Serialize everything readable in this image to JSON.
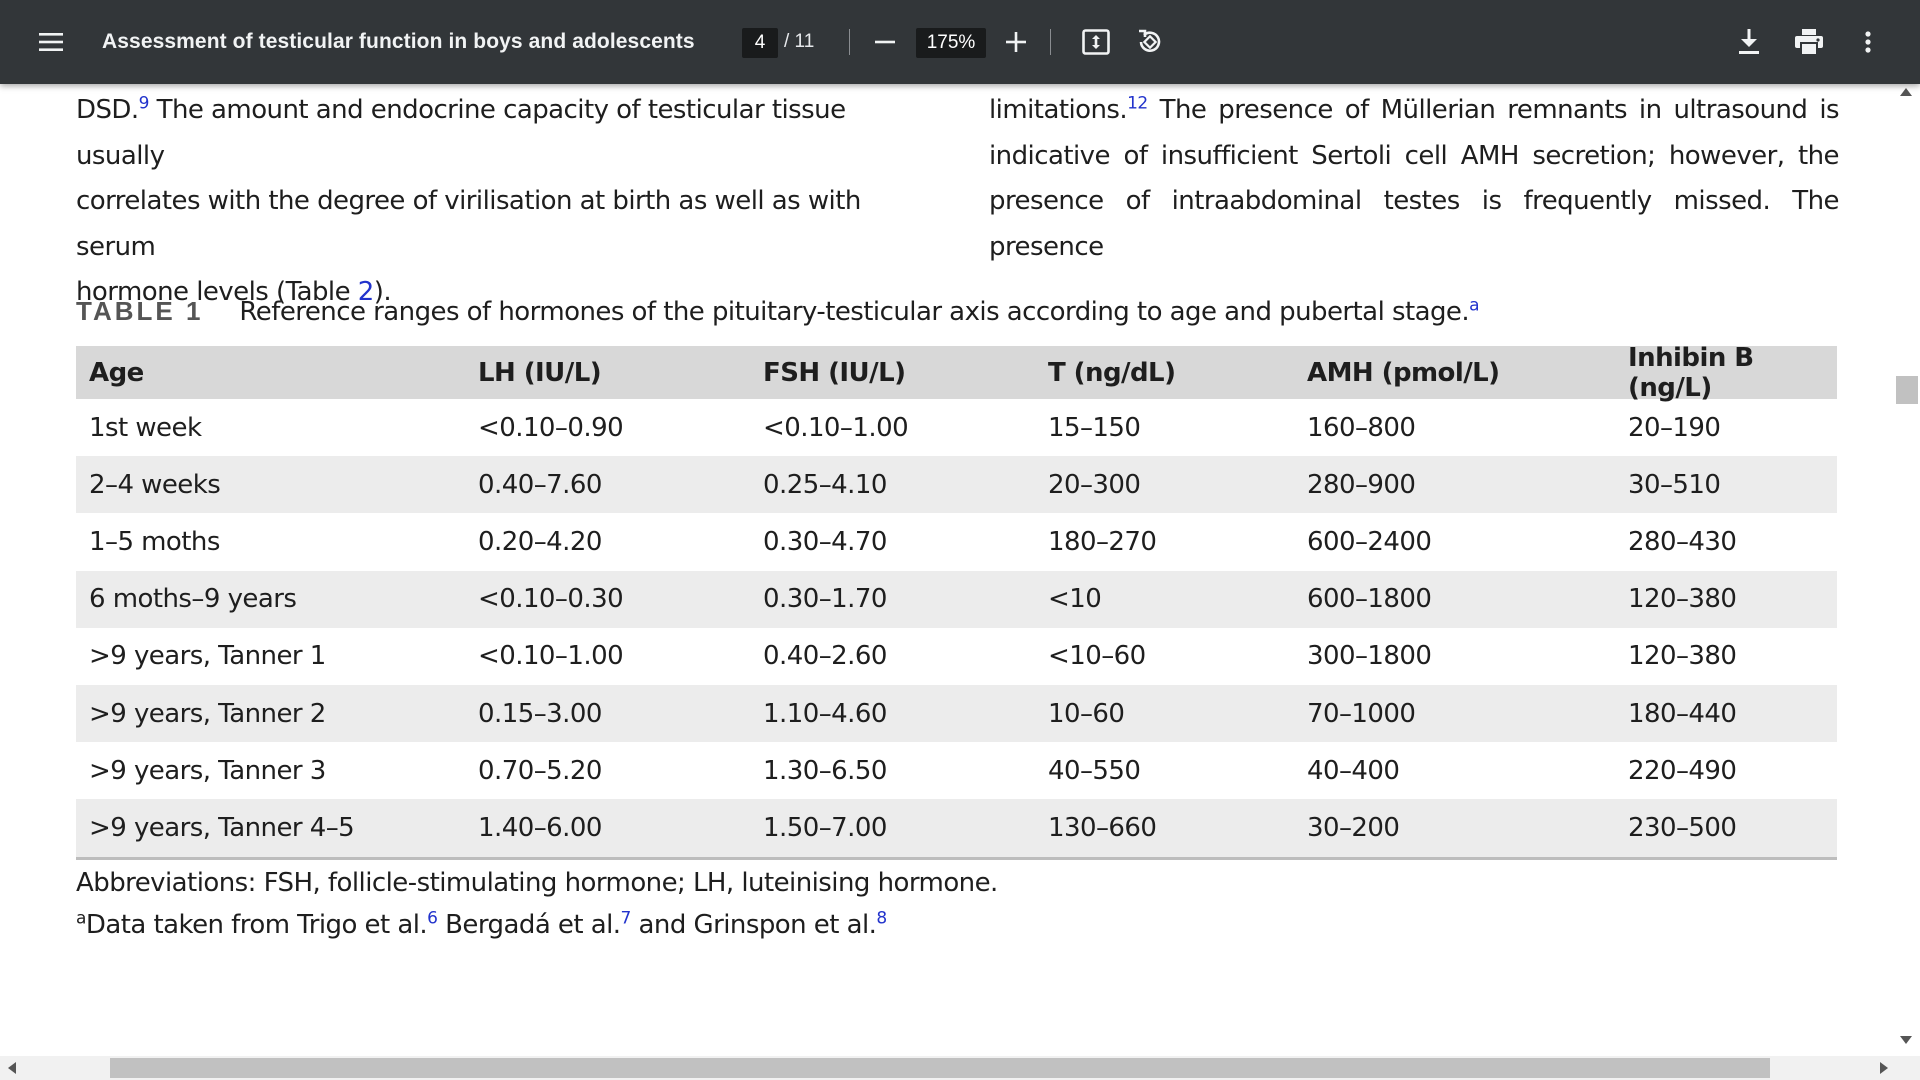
{
  "toolbar": {
    "menu_icon": "hamburger-menu-icon",
    "title": "Assessment of testicular function in boys and adolescents",
    "current_page": "4",
    "total_pages": "/ 11",
    "zoom": "175%",
    "icons": [
      "zoom-out-icon",
      "zoom-in-icon",
      "fit-page-icon",
      "rotate-icon",
      "download-icon",
      "print-icon",
      "more-options-icon"
    ]
  },
  "document": {
    "left_column": {
      "line1_pre": "DSD.",
      "line1_ref": "9",
      "line1_post": " The amount and endocrine capacity of testicular tissue usually",
      "line2": "correlates with the degree of virilisation at birth as well as with serum",
      "line3_pre": "hormone levels (Table ",
      "line3_link": "2",
      "line3_post": ")."
    },
    "right_column": {
      "line1_pre": "limitations.",
      "line1_ref": "12",
      "line1_post": " The presence of Müllerian remnants in ultrasound is",
      "line2": "indicative of insufficient Sertoli cell AMH secretion; however, the",
      "line3": "presence of intraabdominal testes is frequently missed. The presence"
    },
    "table": {
      "label": "TABLE 1",
      "caption": "Reference ranges of hormones of the pituitary-testicular axis according to age and pubertal stage.",
      "caption_ref": "a",
      "headers": [
        "Age",
        "LH (IU/L)",
        "FSH (IU/L)",
        "T (ng/dL)",
        "AMH (pmol/L)",
        "Inhibin B (ng/L)"
      ],
      "rows": [
        [
          "1st week",
          "<0.10–0.90",
          "<0.10–1.00",
          "15–150",
          "160–800",
          "20–190"
        ],
        [
          "2–4 weeks",
          "0.40–7.60",
          "0.25–4.10",
          "20–300",
          "280–900",
          "30–510"
        ],
        [
          "1–5 moths",
          "0.20–4.20",
          "0.30–4.70",
          "180–270",
          "600–2400",
          "280–430"
        ],
        [
          "6 moths–9 years",
          "<0.10–0.30",
          "0.30–1.70",
          "<10",
          "600–1800",
          "120–380"
        ],
        [
          ">9 years, Tanner 1",
          "<0.10–1.00",
          "0.40–2.60",
          "<10–60",
          "300–1800",
          "120–380"
        ],
        [
          ">9 years, Tanner 2",
          "0.15–3.00",
          "1.10–4.60",
          "10–60",
          "70–1000",
          "180–440"
        ],
        [
          ">9 years, Tanner 3",
          "0.70–5.20",
          "1.30–6.50",
          "40–550",
          "40–400",
          "220–490"
        ],
        [
          ">9 years, Tanner 4–5",
          "1.40–6.00",
          "1.50–7.00",
          "130–660",
          "30–200",
          "230–500"
        ]
      ],
      "abbreviations": "Abbreviations: FSH, follicle-stimulating hormone; LH, luteinising hormone.",
      "footnote": {
        "marker": "a",
        "text1": "Data taken from Trigo et al.",
        "ref1": "6",
        "text2": " Bergadá et al.",
        "ref2": "7",
        "text3": " and Grinspon et al.",
        "ref3": "8"
      }
    }
  },
  "colors": {
    "toolbar_bg": "#323639",
    "link": "#2233cc",
    "table_header_bg": "#d8d8d8",
    "table_alt_row_bg": "#ececec"
  }
}
